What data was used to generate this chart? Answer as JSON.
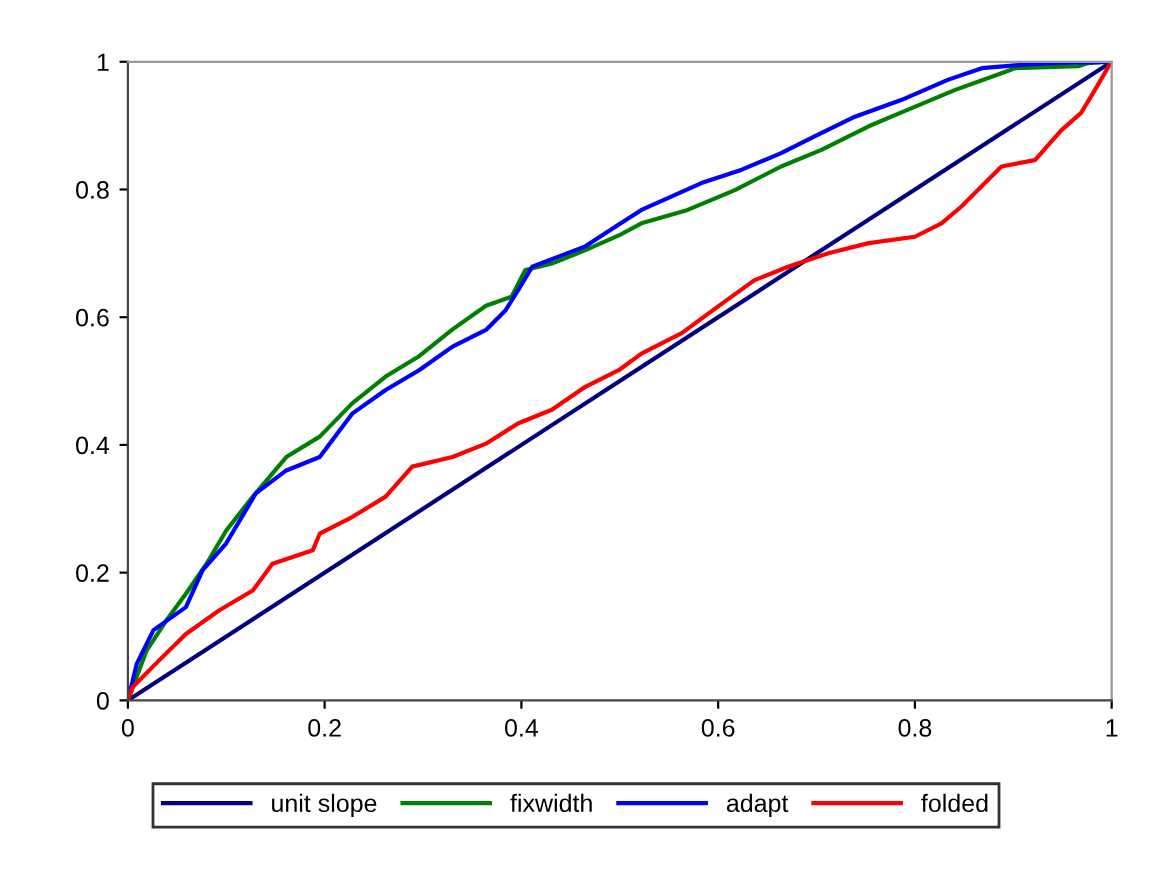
{
  "chart_data": {
    "type": "line",
    "xlim": [
      0,
      1
    ],
    "ylim": [
      0,
      1
    ],
    "xticks": [
      0,
      0.2,
      0.4,
      0.6,
      0.8,
      1
    ],
    "yticks": [
      0,
      0.2,
      0.4,
      0.6,
      0.8,
      1
    ],
    "grid": false,
    "legend": "bottom",
    "marker": "none",
    "line_style": "solid",
    "series": [
      {
        "name": "unit slope",
        "color": "#000080",
        "x": [
          0,
          0.25,
          0.5,
          0.75,
          1
        ],
        "values": [
          0,
          0.25,
          0.5,
          0.75,
          1
        ]
      },
      {
        "name": "fixwidth",
        "color": "#008000",
        "x": [
          0,
          0.019,
          0.039,
          0.059,
          0.08,
          0.1,
          0.127,
          0.161,
          0.195,
          0.228,
          0.262,
          0.296,
          0.33,
          0.364,
          0.39,
          0.404,
          0.431,
          0.465,
          0.499,
          0.522,
          0.569,
          0.617,
          0.664,
          0.705,
          0.753,
          0.793,
          0.841,
          0.888,
          0.902,
          0.966,
          0.976,
          1
        ],
        "values": [
          0,
          0.078,
          0.125,
          0.167,
          0.214,
          0.266,
          0.319,
          0.381,
          0.413,
          0.465,
          0.507,
          0.539,
          0.581,
          0.618,
          0.632,
          0.674,
          0.684,
          0.705,
          0.728,
          0.747,
          0.768,
          0.799,
          0.836,
          0.862,
          0.899,
          0.925,
          0.956,
          0.982,
          0.99,
          0.993,
          0.998,
          1
        ]
      },
      {
        "name": "adapt",
        "color": "#0000ff",
        "x": [
          0,
          0.009,
          0.026,
          0.059,
          0.076,
          0.1,
          0.13,
          0.161,
          0.195,
          0.228,
          0.262,
          0.296,
          0.33,
          0.364,
          0.384,
          0.397,
          0.411,
          0.465,
          0.499,
          0.522,
          0.583,
          0.624,
          0.664,
          0.698,
          0.739,
          0.786,
          0.834,
          0.868,
          0.915,
          0.942,
          1
        ],
        "values": [
          0,
          0.057,
          0.11,
          0.146,
          0.204,
          0.246,
          0.324,
          0.36,
          0.381,
          0.449,
          0.486,
          0.517,
          0.554,
          0.58,
          0.611,
          0.643,
          0.679,
          0.711,
          0.745,
          0.768,
          0.81,
          0.831,
          0.857,
          0.883,
          0.914,
          0.94,
          0.972,
          0.99,
          0.996,
          0.998,
          1
        ]
      },
      {
        "name": "folded",
        "color": "#ff0000",
        "x": [
          0,
          0.005,
          0.032,
          0.059,
          0.093,
          0.127,
          0.147,
          0.188,
          0.195,
          0.228,
          0.262,
          0.289,
          0.33,
          0.364,
          0.397,
          0.431,
          0.465,
          0.499,
          0.522,
          0.563,
          0.6,
          0.637,
          0.671,
          0.712,
          0.753,
          0.8,
          0.827,
          0.847,
          0.888,
          0.922,
          0.949,
          0.969,
          0.983,
          0.997,
          1
        ],
        "values": [
          0,
          0.021,
          0.063,
          0.104,
          0.141,
          0.172,
          0.214,
          0.235,
          0.261,
          0.287,
          0.319,
          0.366,
          0.381,
          0.402,
          0.434,
          0.455,
          0.491,
          0.517,
          0.543,
          0.575,
          0.617,
          0.658,
          0.679,
          0.7,
          0.716,
          0.726,
          0.747,
          0.773,
          0.836,
          0.846,
          0.893,
          0.92,
          0.956,
          0.993,
          1
        ]
      }
    ]
  }
}
